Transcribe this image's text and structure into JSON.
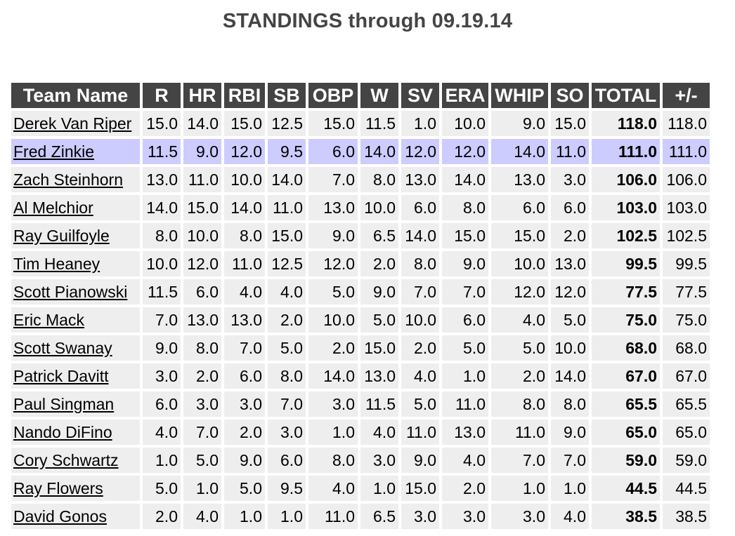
{
  "page": {
    "title": "STANDINGS through 09.19.14"
  },
  "table": {
    "headers": [
      "Team Name",
      "R",
      "HR",
      "RBI",
      "SB",
      "OBP",
      "W",
      "SV",
      "ERA",
      "WHIP",
      "SO",
      "TOTAL",
      "+/-"
    ],
    "highlight_color": "#ccccff",
    "header_color": "#444444",
    "rows": [
      {
        "team": "Derek Van Riper",
        "cells": [
          "15.0",
          "14.0",
          "15.0",
          "12.5",
          "15.0",
          "11.5",
          "1.0",
          "10.0",
          "9.0",
          "15.0",
          "118.0",
          "118.0"
        ],
        "highlight": false
      },
      {
        "team": "Fred Zinkie",
        "cells": [
          "11.5",
          "9.0",
          "12.0",
          "9.5",
          "6.0",
          "14.0",
          "12.0",
          "12.0",
          "14.0",
          "11.0",
          "111.0",
          "111.0"
        ],
        "highlight": true
      },
      {
        "team": "Zach Steinhorn",
        "cells": [
          "13.0",
          "11.0",
          "10.0",
          "14.0",
          "7.0",
          "8.0",
          "13.0",
          "14.0",
          "13.0",
          "3.0",
          "106.0",
          "106.0"
        ],
        "highlight": false
      },
      {
        "team": "Al Melchior",
        "cells": [
          "14.0",
          "15.0",
          "14.0",
          "11.0",
          "13.0",
          "10.0",
          "6.0",
          "8.0",
          "6.0",
          "6.0",
          "103.0",
          "103.0"
        ],
        "highlight": false
      },
      {
        "team": "Ray Guilfoyle",
        "cells": [
          "8.0",
          "10.0",
          "8.0",
          "15.0",
          "9.0",
          "6.5",
          "14.0",
          "15.0",
          "15.0",
          "2.0",
          "102.5",
          "102.5"
        ],
        "highlight": false
      },
      {
        "team": "Tim Heaney",
        "cells": [
          "10.0",
          "12.0",
          "11.0",
          "12.5",
          "12.0",
          "2.0",
          "8.0",
          "9.0",
          "10.0",
          "13.0",
          "99.5",
          "99.5"
        ],
        "highlight": false
      },
      {
        "team": "Scott Pianowski",
        "cells": [
          "11.5",
          "6.0",
          "4.0",
          "4.0",
          "5.0",
          "9.0",
          "7.0",
          "7.0",
          "12.0",
          "12.0",
          "77.5",
          "77.5"
        ],
        "highlight": false
      },
      {
        "team": "Eric Mack",
        "cells": [
          "7.0",
          "13.0",
          "13.0",
          "2.0",
          "10.0",
          "5.0",
          "10.0",
          "6.0",
          "4.0",
          "5.0",
          "75.0",
          "75.0"
        ],
        "highlight": false
      },
      {
        "team": "Scott Swanay",
        "cells": [
          "9.0",
          "8.0",
          "7.0",
          "5.0",
          "2.0",
          "15.0",
          "2.0",
          "5.0",
          "5.0",
          "10.0",
          "68.0",
          "68.0"
        ],
        "highlight": false
      },
      {
        "team": "Patrick Davitt",
        "cells": [
          "3.0",
          "2.0",
          "6.0",
          "8.0",
          "14.0",
          "13.0",
          "4.0",
          "1.0",
          "2.0",
          "14.0",
          "67.0",
          "67.0"
        ],
        "highlight": false
      },
      {
        "team": "Paul Singman",
        "cells": [
          "6.0",
          "3.0",
          "3.0",
          "7.0",
          "3.0",
          "11.5",
          "5.0",
          "11.0",
          "8.0",
          "8.0",
          "65.5",
          "65.5"
        ],
        "highlight": false
      },
      {
        "team": "Nando DiFino",
        "cells": [
          "4.0",
          "7.0",
          "2.0",
          "3.0",
          "1.0",
          "4.0",
          "11.0",
          "13.0",
          "11.0",
          "9.0",
          "65.0",
          "65.0"
        ],
        "highlight": false
      },
      {
        "team": "Cory Schwartz",
        "cells": [
          "1.0",
          "5.0",
          "9.0",
          "6.0",
          "8.0",
          "3.0",
          "9.0",
          "4.0",
          "7.0",
          "7.0",
          "59.0",
          "59.0"
        ],
        "highlight": false
      },
      {
        "team": "Ray Flowers",
        "cells": [
          "5.0",
          "1.0",
          "5.0",
          "9.5",
          "4.0",
          "1.0",
          "15.0",
          "2.0",
          "1.0",
          "1.0",
          "44.5",
          "44.5"
        ],
        "highlight": false
      },
      {
        "team": "David Gonos",
        "cells": [
          "2.0",
          "4.0",
          "1.0",
          "1.0",
          "11.0",
          "6.5",
          "3.0",
          "3.0",
          "3.0",
          "4.0",
          "38.5",
          "38.5"
        ],
        "highlight": false
      }
    ]
  }
}
